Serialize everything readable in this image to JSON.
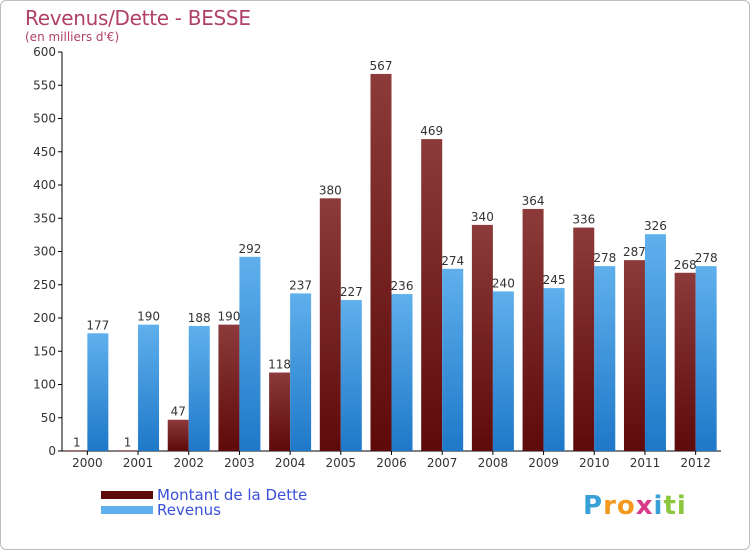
{
  "colors": {
    "debt_dark": "#5e0a0a",
    "debt_light": "#8c3a3a",
    "rev_dark": "#1f78c8",
    "rev_light": "#5fb0ec",
    "title": "#b0406a",
    "legend_text": "#3a50d8",
    "axis_text": "#333333"
  },
  "logo": {
    "letters": [
      "P",
      "r",
      "o",
      "x",
      "i",
      "t",
      "i"
    ],
    "colors": [
      "#3aa0d8",
      "#f39a1e",
      "#f39a1e",
      "#d83a8a",
      "#3aa0d8",
      "#8cc63f",
      "#8cc63f"
    ]
  },
  "chart_data": {
    "type": "bar",
    "title": "Revenus/Dette - BESSE",
    "subtitle": "(en milliers d'€)",
    "xlabel": "",
    "ylabel": "",
    "ylim": [
      0,
      600
    ],
    "yticks": [
      0,
      50,
      100,
      150,
      200,
      250,
      300,
      350,
      400,
      450,
      500,
      550,
      600
    ],
    "grid": false,
    "categories": [
      "2000",
      "2001",
      "2002",
      "2003",
      "2004",
      "2005",
      "2006",
      "2007",
      "2008",
      "2009",
      "2010",
      "2011",
      "2012"
    ],
    "series": [
      {
        "name": "Montant de la Dette",
        "values": [
          1,
          1,
          47,
          190,
          118,
          380,
          567,
          469,
          340,
          364,
          336,
          287,
          268
        ]
      },
      {
        "name": "Revenus",
        "values": [
          177,
          190,
          188,
          292,
          237,
          227,
          236,
          274,
          240,
          245,
          278,
          326,
          278
        ]
      }
    ],
    "legend_position": "bottom-left"
  }
}
